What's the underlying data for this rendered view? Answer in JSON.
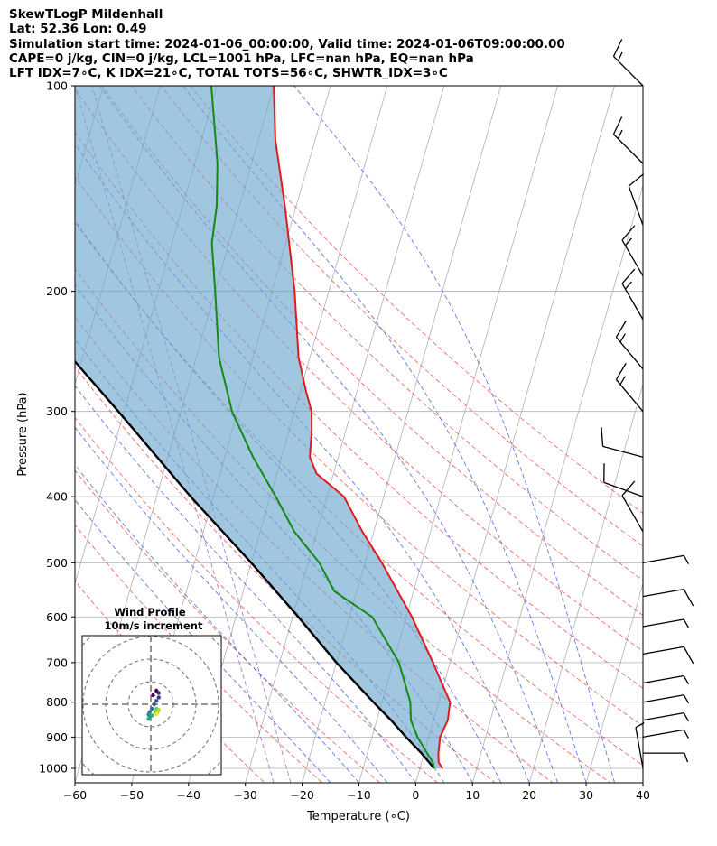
{
  "header": {
    "line1": "SkewTLogP Mildenhall",
    "line2": "Lat: 52.36   Lon: 0.49",
    "line3": "Simulation start time: 2024-01-06_00:00:00, Valid time: 2024-01-06T09:00:00.00",
    "line4": "CAPE=0 j/kg, CIN=0 j/kg, LCL=1001 hPa, LFC=nan hPa, EQ=nan hPa",
    "line5": "LFT IDX=7∘C, K IDX=21∘C, TOTAL TOTS=56∘C, SHWTR_IDX=3∘C"
  },
  "chart_data": {
    "type": "line",
    "subtype": "skew-t log-p",
    "xlabel": "Temperature (∘C)",
    "ylabel": "Pressure (hPa)",
    "xlim": [
      -60,
      40
    ],
    "ylim": [
      1050,
      100
    ],
    "y_scale": "log",
    "grid": true,
    "x_ticks": [
      "−60",
      "−50",
      "−40",
      "−30",
      "−20",
      "−10",
      "0",
      "10",
      "20",
      "30",
      "40"
    ],
    "y_ticks": [
      "100",
      "200",
      "300",
      "400",
      "500",
      "600",
      "700",
      "800",
      "900",
      "1000"
    ],
    "series": [
      {
        "role": "temperature",
        "color": "#e31a1c",
        "points": [
          [
            1000,
            4
          ],
          [
            980,
            3
          ],
          [
            950,
            2.5
          ],
          [
            900,
            2
          ],
          [
            850,
            2.5
          ],
          [
            800,
            2
          ],
          [
            700,
            -3
          ],
          [
            600,
            -9
          ],
          [
            500,
            -17
          ],
          [
            450,
            -22
          ],
          [
            400,
            -27
          ],
          [
            370,
            -33
          ],
          [
            350,
            -35
          ],
          [
            320,
            -36
          ],
          [
            300,
            -37
          ],
          [
            280,
            -39
          ],
          [
            250,
            -42
          ],
          [
            200,
            -46
          ],
          [
            150,
            -52
          ],
          [
            120,
            -57
          ],
          [
            100,
            -60
          ]
        ]
      },
      {
        "role": "dewpoint",
        "color": "#138a13",
        "points": [
          [
            1000,
            2.5
          ],
          [
            980,
            2
          ],
          [
            950,
            0.5
          ],
          [
            900,
            -2
          ],
          [
            850,
            -4
          ],
          [
            800,
            -5
          ],
          [
            700,
            -9
          ],
          [
            600,
            -16
          ],
          [
            550,
            -24
          ],
          [
            500,
            -28
          ],
          [
            450,
            -34
          ],
          [
            400,
            -39
          ],
          [
            350,
            -45
          ],
          [
            300,
            -51
          ],
          [
            250,
            -56
          ],
          [
            200,
            -60
          ],
          [
            170,
            -63
          ],
          [
            150,
            -64
          ],
          [
            130,
            -66
          ],
          [
            100,
            -71
          ]
        ]
      },
      {
        "role": "parcel",
        "color": "#000000",
        "points": [
          [
            1000,
            2.5
          ],
          [
            950,
            -0.5
          ],
          [
            900,
            -4
          ],
          [
            850,
            -7.5
          ],
          [
            800,
            -11.5
          ],
          [
            700,
            -20
          ],
          [
            600,
            -29
          ],
          [
            500,
            -40
          ],
          [
            400,
            -54
          ],
          [
            300,
            -71
          ],
          [
            250,
            -82
          ],
          [
            200,
            -95
          ],
          [
            150,
            -111
          ],
          [
            125,
            -121
          ],
          [
            100,
            -134
          ]
        ]
      }
    ],
    "wind_barbs": {
      "pressures": [
        100,
        130,
        160,
        190,
        220,
        260,
        300,
        350,
        400,
        450,
        500,
        560,
        620,
        680,
        750,
        800,
        850,
        900,
        950,
        1000
      ],
      "speeds_kt": [
        15,
        15,
        10,
        15,
        15,
        15,
        15,
        10,
        10,
        10,
        5,
        10,
        5,
        10,
        5,
        5,
        5,
        5,
        5,
        5
      ],
      "from_deg": [
        315,
        315,
        340,
        330,
        330,
        320,
        320,
        285,
        290,
        330,
        80,
        80,
        80,
        80,
        80,
        80,
        80,
        80,
        90,
        350
      ]
    },
    "hodograph": {
      "title": "Wind Profile",
      "subtitle": "10m/s increment",
      "ring_step_ms": 10,
      "colormap": "viridis",
      "points": [
        [
          1,
          4
        ],
        [
          2.5,
          6
        ],
        [
          3.5,
          5
        ],
        [
          3.5,
          3
        ],
        [
          2.5,
          1.5
        ],
        [
          1.5,
          0
        ],
        [
          0.5,
          -2
        ],
        [
          -0.5,
          -3.5
        ],
        [
          -1,
          -4.5
        ],
        [
          -0.5,
          -5.5
        ],
        [
          -1,
          -6.5
        ],
        [
          0.5,
          -5
        ],
        [
          2,
          -3.5
        ],
        [
          2.5,
          -2
        ],
        [
          3.5,
          -2.5
        ],
        [
          3,
          -3.5
        ],
        [
          2.5,
          -4.5
        ]
      ]
    }
  }
}
